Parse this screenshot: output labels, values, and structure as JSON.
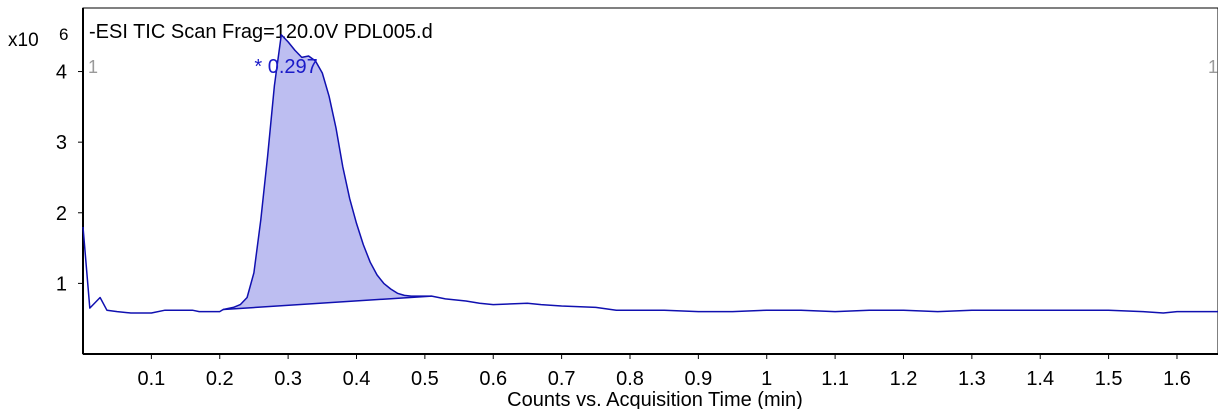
{
  "chart_data": {
    "type": "line",
    "title": "-ESI TIC Scan Frag=120.0V PDL005.d",
    "xlabel": "Counts vs. Acquisition Time (min)",
    "y_multiplier_label": "x10",
    "y_multiplier_exponent": "6",
    "y_unit_scale": 1000000,
    "xlim": [
      0.0,
      1.66
    ],
    "ylim": [
      0.0,
      4.9
    ],
    "x_ticks": [
      0.1,
      0.2,
      0.3,
      0.4,
      0.5,
      0.6,
      0.7,
      0.8,
      0.9,
      1,
      1.1,
      1.2,
      1.3,
      1.4,
      1.5,
      1.6
    ],
    "y_ticks": [
      1,
      2,
      3,
      4
    ],
    "grid": false,
    "marker_left": "1",
    "marker_right": "1",
    "peak": {
      "label": "* 0.297",
      "rt": 0.297,
      "apex_y": 4.52,
      "baseline": {
        "start": [
          0.205,
          0.63
        ],
        "end": [
          0.51,
          0.82
        ]
      },
      "fill_color": "#bdbef1"
    },
    "series": [
      {
        "color": "#1010b0",
        "x": [
          0.0,
          0.01,
          0.025,
          0.035,
          0.05,
          0.07,
          0.1,
          0.12,
          0.13,
          0.16,
          0.17,
          0.2,
          0.205,
          0.22,
          0.23,
          0.24,
          0.25,
          0.26,
          0.27,
          0.28,
          0.29,
          0.3,
          0.31,
          0.32,
          0.33,
          0.34,
          0.35,
          0.36,
          0.37,
          0.38,
          0.39,
          0.4,
          0.41,
          0.42,
          0.43,
          0.44,
          0.45,
          0.46,
          0.47,
          0.48,
          0.49,
          0.5,
          0.51,
          0.53,
          0.56,
          0.58,
          0.6,
          0.65,
          0.67,
          0.7,
          0.75,
          0.78,
          0.8,
          0.85,
          0.9,
          0.95,
          1.0,
          1.05,
          1.1,
          1.15,
          1.2,
          1.25,
          1.3,
          1.35,
          1.4,
          1.45,
          1.5,
          1.55,
          1.58,
          1.6,
          1.65,
          1.66
        ],
        "y": [
          1.8,
          0.65,
          0.8,
          0.62,
          0.6,
          0.58,
          0.58,
          0.62,
          0.62,
          0.62,
          0.6,
          0.6,
          0.63,
          0.66,
          0.7,
          0.8,
          1.15,
          1.9,
          2.8,
          3.8,
          4.52,
          4.42,
          4.3,
          4.2,
          4.22,
          4.15,
          3.98,
          3.65,
          3.2,
          2.65,
          2.2,
          1.85,
          1.55,
          1.3,
          1.12,
          1.0,
          0.92,
          0.86,
          0.83,
          0.82,
          0.82,
          0.82,
          0.82,
          0.78,
          0.75,
          0.72,
          0.7,
          0.72,
          0.7,
          0.68,
          0.66,
          0.62,
          0.62,
          0.62,
          0.6,
          0.6,
          0.62,
          0.62,
          0.6,
          0.62,
          0.62,
          0.6,
          0.62,
          0.62,
          0.62,
          0.62,
          0.62,
          0.6,
          0.58,
          0.6,
          0.6,
          0.6
        ]
      }
    ]
  }
}
